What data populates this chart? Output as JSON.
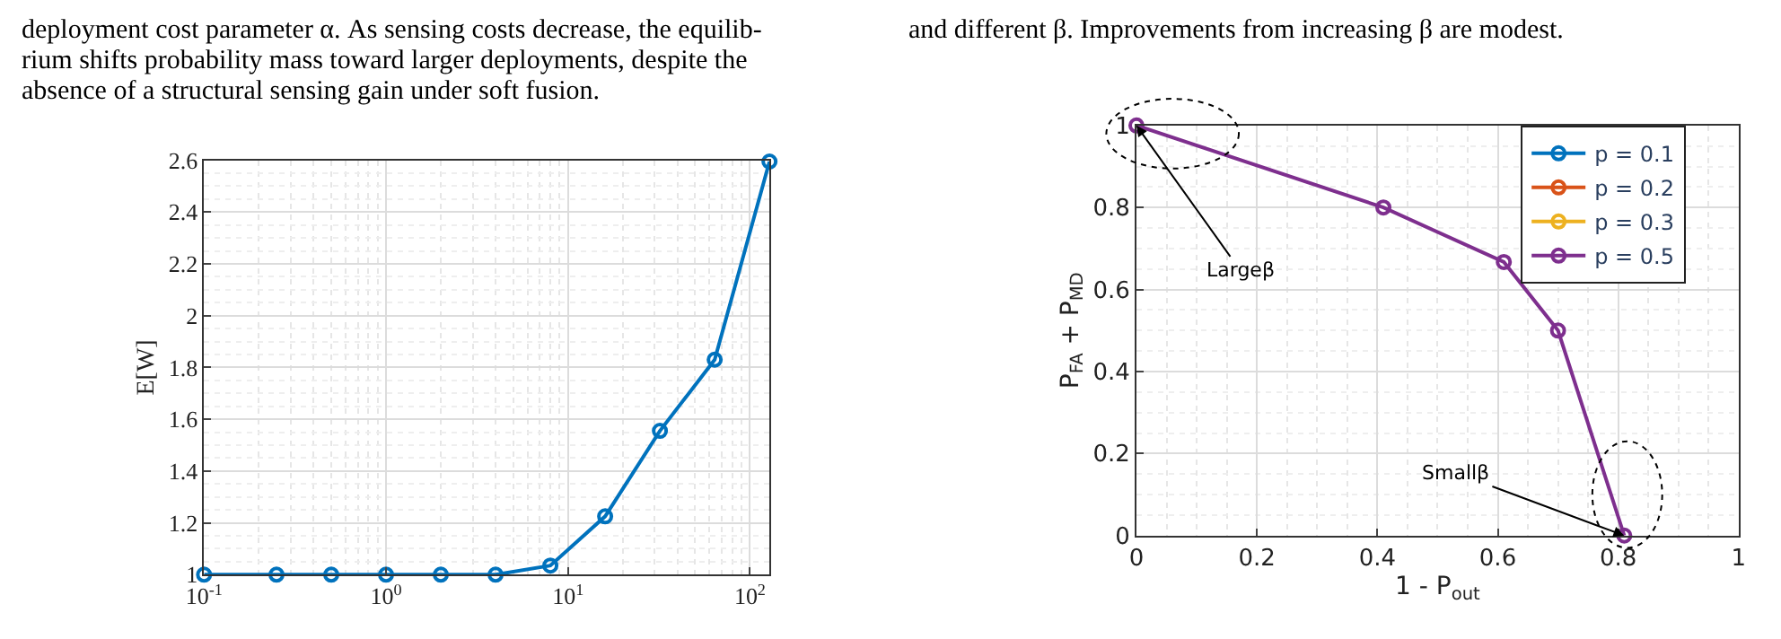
{
  "chart_data": [
    {
      "type": "line",
      "annotations": [
        "deployment cost parameter α. As sensing costs decrease, the equilib-",
        "rium shifts probability mass toward larger deployments, despite the",
        "absence of a structural sensing gain under soft fusion."
      ],
      "ylabel": "E[W]",
      "log": "x",
      "x": [
        0.1,
        0.25,
        0.5,
        1,
        2,
        4,
        8,
        16,
        32,
        64,
        128
      ],
      "series": [
        {
          "color": "#0072bd",
          "values": [
            1,
            1,
            1,
            1,
            1,
            1,
            1.035,
            1.225,
            1.555,
            1.83,
            2.595
          ]
        }
      ],
      "xlim": [
        0.1,
        128
      ],
      "xticks": [
        {
          "value": 0.1,
          "label": "10$^{-1}$"
        },
        {
          "value": 1,
          "label": "10$^{0}$"
        },
        {
          "value": 10,
          "label": "10$^{1}$"
        },
        {
          "value": 100,
          "label": "10$^{2}$"
        }
      ],
      "ylim": [
        1,
        2.6
      ],
      "yticks": [
        1,
        1.2,
        1.4,
        1.6,
        1.8,
        2,
        2.2,
        2.4,
        2.6
      ],
      "grid": true,
      "marker": "circle",
      "line_style": "solid"
    },
    {
      "type": "line",
      "subtitle": "and different β. Improvements from increasing β are modest.",
      "xlabel": "1 - P$_{out}$",
      "ylabel": "P$_{FA}$ + P$_{MD}$",
      "annotations": [
        {
          "text": "Largeβ",
          "x": 0,
          "y": 1
        },
        {
          "text": "Smallβ",
          "x": 0.81,
          "y": 0
        }
      ],
      "x": [
        0,
        0.41,
        0.61,
        0.7,
        0.81
      ],
      "series": [
        {
          "name": "p = 0.1",
          "color": "#0072bd",
          "values": [
            null,
            null,
            null,
            null,
            null
          ]
        },
        {
          "name": "p = 0.2",
          "color": "#d95319",
          "values": [
            null,
            null,
            null,
            null,
            null
          ]
        },
        {
          "name": "p = 0.3",
          "color": "#edb120",
          "values": [
            null,
            null,
            null,
            null,
            null
          ]
        },
        {
          "name": "p = 0.5",
          "color": "#7e2f8e",
          "values": [
            1,
            0.8,
            0.667,
            0.5,
            0
          ]
        }
      ],
      "xlim": [
        0,
        1
      ],
      "xticks": [
        0,
        0.2,
        0.4,
        0.6,
        0.8,
        1
      ],
      "ylim": [
        0,
        1
      ],
      "yticks": [
        0,
        0.2,
        0.4,
        0.6,
        0.8,
        1
      ],
      "grid": true,
      "legend": "top right",
      "marker": "circle",
      "line_style": "solid"
    }
  ]
}
